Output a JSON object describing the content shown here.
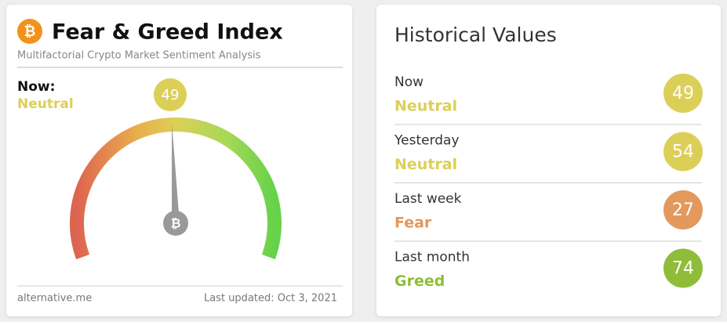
{
  "header": {
    "title": "Fear & Greed Index",
    "subtitle": "Multifactorial Crypto Market Sentiment Analysis"
  },
  "now": {
    "label": "Now:",
    "classification": "Neutral",
    "value": 49,
    "color": "#dccf58",
    "range": [
      0,
      100
    ]
  },
  "footer": {
    "source": "alternative.me",
    "updated": "Last updated: Oct 3, 2021"
  },
  "history": {
    "title": "Historical Values",
    "rows": [
      {
        "label": "Now",
        "classification": "Neutral",
        "value": 49,
        "color": "#dccf58"
      },
      {
        "label": "Yesterday",
        "classification": "Neutral",
        "value": 54,
        "color": "#dccf58"
      },
      {
        "label": "Last week",
        "classification": "Fear",
        "value": 27,
        "color": "#e3985c"
      },
      {
        "label": "Last month",
        "classification": "Greed",
        "value": 74,
        "color": "#8fbd3a"
      }
    ]
  }
}
